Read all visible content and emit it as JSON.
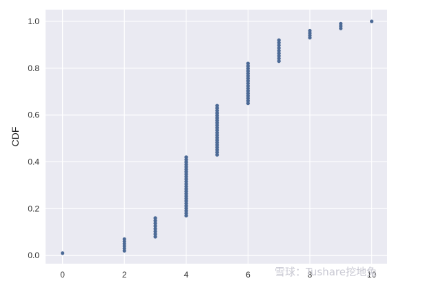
{
  "chart_data": {
    "type": "scatter",
    "title": "",
    "xlabel": "",
    "ylabel": "CDF",
    "xlim": [
      -0.55,
      10.5
    ],
    "ylim": [
      -0.035,
      1.05
    ],
    "xticks": [
      0,
      2,
      4,
      6,
      8,
      10
    ],
    "yticks": [
      0.0,
      0.2,
      0.4,
      0.6,
      0.8,
      1.0
    ],
    "xtick_labels": [
      "0",
      "2",
      "4",
      "6",
      "8",
      "10"
    ],
    "ytick_labels": [
      "0.0",
      "0.2",
      "0.4",
      "0.6",
      "0.8",
      "1.0"
    ],
    "grid": true,
    "background_color": "#eaeaf2",
    "grid_color": "#ffffff",
    "marker_color": "#4c6a96",
    "series": [
      {
        "groups": [
          {
            "x": 0,
            "y_start": 0.01,
            "y_end": 0.01,
            "count": 1
          },
          {
            "x": 2,
            "y_start": 0.02,
            "y_end": 0.07,
            "count": 6
          },
          {
            "x": 3,
            "y_start": 0.08,
            "y_end": 0.16,
            "count": 8
          },
          {
            "x": 4,
            "y_start": 0.17,
            "y_end": 0.42,
            "count": 25
          },
          {
            "x": 5,
            "y_start": 0.43,
            "y_end": 0.64,
            "count": 21
          },
          {
            "x": 6,
            "y_start": 0.65,
            "y_end": 0.82,
            "count": 17
          },
          {
            "x": 7,
            "y_start": 0.83,
            "y_end": 0.92,
            "count": 9
          },
          {
            "x": 8,
            "y_start": 0.93,
            "y_end": 0.96,
            "count": 4
          },
          {
            "x": 9,
            "y_start": 0.97,
            "y_end": 0.99,
            "count": 3
          },
          {
            "x": 10,
            "y_start": 1.0,
            "y_end": 1.0,
            "count": 1
          }
        ]
      }
    ]
  },
  "watermark": {
    "text": "雪球：Tushare挖地兔"
  }
}
